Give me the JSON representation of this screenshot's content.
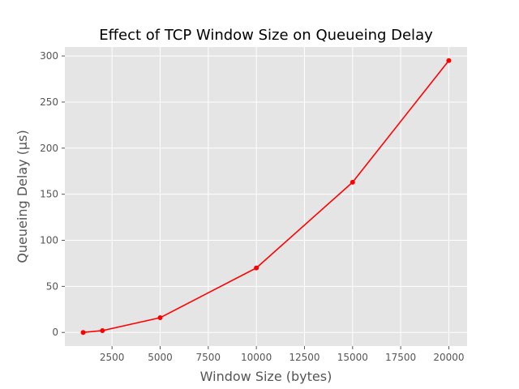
{
  "chart_data": {
    "type": "line",
    "title": "Effect of TCP Window Size on Queueing Delay",
    "xlabel": "Window Size (bytes)",
    "ylabel": "Queueing Delay (μs)",
    "xlim": [
      50,
      20950
    ],
    "ylim": [
      -14.75,
      309.75
    ],
    "xticks": [
      2500,
      5000,
      7500,
      10000,
      12500,
      15000,
      17500,
      20000
    ],
    "yticks": [
      0,
      50,
      100,
      150,
      200,
      250,
      300
    ],
    "grid": true,
    "legend": false,
    "series": [
      {
        "color": "#ff0000",
        "points": [
          {
            "x": 1000,
            "y": 0
          },
          {
            "x": 2000,
            "y": 2
          },
          {
            "x": 5000,
            "y": 16
          },
          {
            "x": 10000,
            "y": 70
          },
          {
            "x": 15000,
            "y": 163
          },
          {
            "x": 20000,
            "y": 295
          }
        ]
      }
    ]
  }
}
